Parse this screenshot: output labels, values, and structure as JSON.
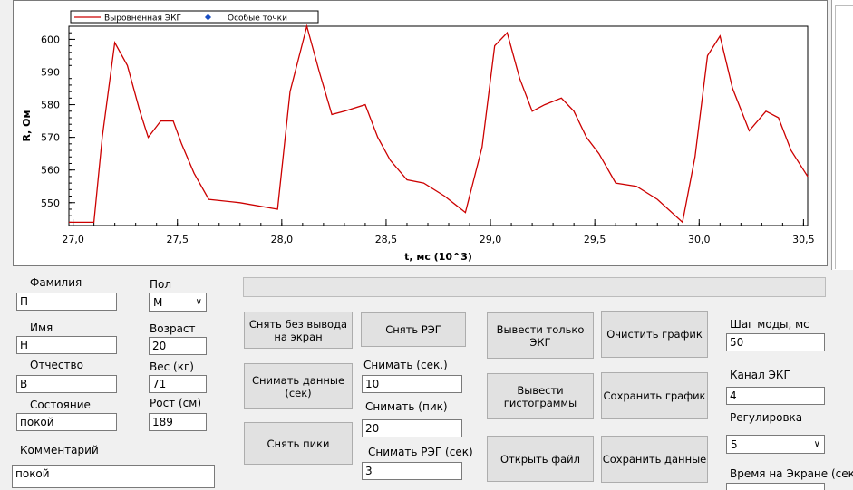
{
  "chart_data": {
    "type": "line",
    "xlabel": "t, мс (10^3)",
    "ylabel": "R, Ом",
    "xlim": [
      26.98,
      30.52
    ],
    "ylim": [
      543,
      604
    ],
    "xticks": [
      "27,0",
      "27,5",
      "28,0",
      "28,5",
      "29,0",
      "29,5",
      "30,0",
      "30,5"
    ],
    "yticks": [
      "550",
      "560",
      "570",
      "580",
      "590",
      "600"
    ],
    "legend": [
      "Выровненная ЭКГ",
      "Особые точки"
    ],
    "legend_position": "top-left",
    "series": [
      {
        "name": "Выровненная ЭКГ",
        "color": "#cc0000",
        "x": [
          26.98,
          27.1,
          27.14,
          27.2,
          27.26,
          27.32,
          27.36,
          27.42,
          27.48,
          27.52,
          27.58,
          27.65,
          27.8,
          27.98,
          28.04,
          28.12,
          28.18,
          28.24,
          28.3,
          28.4,
          28.46,
          28.52,
          28.6,
          28.68,
          28.78,
          28.88,
          28.96,
          29.02,
          29.08,
          29.14,
          29.2,
          29.26,
          29.34,
          29.4,
          29.46,
          29.52,
          29.6,
          29.7,
          29.8,
          29.92,
          29.98,
          30.04,
          30.1,
          30.16,
          30.24,
          30.32,
          30.38,
          30.44,
          30.52
        ],
        "values": [
          544,
          544,
          570,
          599,
          592,
          578,
          570,
          575,
          575,
          568,
          559,
          551,
          550,
          548,
          584,
          604,
          590,
          577,
          578,
          580,
          570,
          563,
          557,
          556,
          552,
          547,
          567,
          598,
          602,
          588,
          578,
          580,
          582,
          578,
          570,
          565,
          556,
          555,
          551,
          544,
          564,
          595,
          601,
          585,
          572,
          578,
          576,
          566,
          558
        ]
      }
    ]
  },
  "form": {
    "surname_label": "Фамилия",
    "surname_value": "П",
    "name_label": "Имя",
    "name_value": "Н",
    "patronymic_label": "Отчество",
    "patronymic_value": "В",
    "state_label": "Состояние",
    "state_value": "покой",
    "comment_label": "Комментарий",
    "comment_value": "покой",
    "gender_label": "Пол",
    "gender_value": "М",
    "age_label": "Возраст",
    "age_value": "20",
    "weight_label": "Вес (кг)",
    "weight_value": "71",
    "height_label": "Рост (см)",
    "height_value": "189"
  },
  "buttons": {
    "record_no_display": "Снять без вывода на экран",
    "record_reg": "Снять РЭГ",
    "record_data_sec": "Снимать данные (сек)",
    "record_peaks": "Снять пики",
    "show_ecg_only": "Вывести только ЭКГ",
    "show_histograms": "Вывести гистограммы",
    "open_file": "Открыть файл",
    "clear_chart": "Очистить график",
    "save_chart": "Сохранить график",
    "save_data": "Сохранить данные"
  },
  "capture": {
    "sec_label": "Снимать (сек.)",
    "sec_value": "10",
    "peaks_label": "Снимать (пик)",
    "peaks_value": "20",
    "reg_label": "Снимать РЭГ (сек)",
    "reg_value": "3"
  },
  "settings": {
    "mode_step_label": "Шаг моды, мс",
    "mode_step_value": "50",
    "ecg_channel_label": "Канал ЭКГ",
    "ecg_channel_value": "4",
    "regulation_label": "Регулировка",
    "regulation_value": "5",
    "screen_time_label": "Время на Экране (сек)"
  }
}
